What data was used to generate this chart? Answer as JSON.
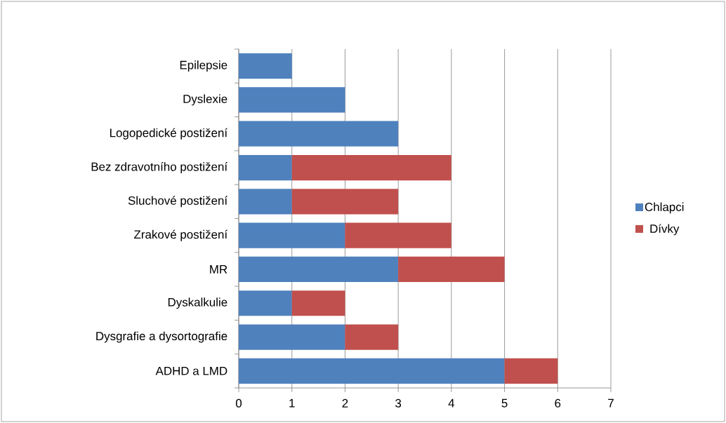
{
  "chart_data": {
    "type": "bar",
    "orientation": "horizontal",
    "stacked": true,
    "categories": [
      "Epilepsie",
      "Dyslexie",
      "Logopedické postižení",
      "Bez zdravotního postižení",
      "Sluchové postižení",
      "Zrakové postižení",
      "MR",
      "Dyskalkulie",
      "Dysgrafie a dysortografie",
      "ADHD a LMD"
    ],
    "series": [
      {
        "name": "Chlapci",
        "color": "#4f81bd",
        "values": [
          1,
          2,
          3,
          1,
          1,
          2,
          3,
          1,
          2,
          5
        ]
      },
      {
        "name": "Dívky",
        "color": "#c0504d",
        "values": [
          null,
          null,
          null,
          3,
          2,
          2,
          2,
          1,
          1,
          1
        ]
      }
    ],
    "xlim": [
      0,
      7
    ],
    "xticks": [
      0,
      1,
      2,
      3,
      4,
      5,
      6,
      7
    ],
    "grid": "x",
    "legend": "right"
  }
}
